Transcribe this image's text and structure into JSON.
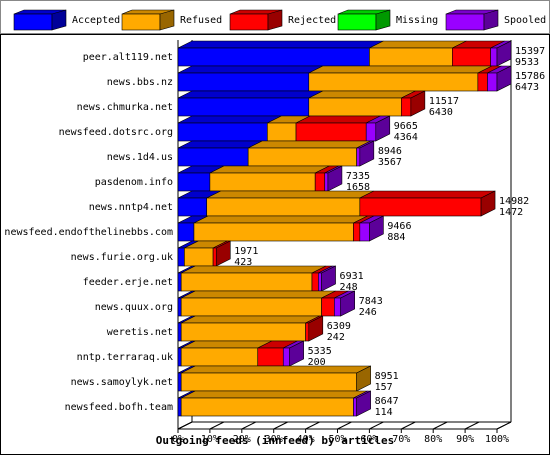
{
  "chart_data": {
    "type": "bar3d_stacked_horizontal",
    "x_label": "Outgoing feeds (innfeed) by articles",
    "categories": [
      "peer.alt119.net",
      "news.bbs.nz",
      "news.chmurka.net",
      "newsfeed.dotsrc.org",
      "news.1d4.us",
      "pasdenom.info",
      "news.nntp4.net",
      "newsfeed.endofthelinebbs.com",
      "news.furie.org.uk",
      "feeder.erje.net",
      "news.quux.org",
      "weretis.net",
      "nntp.terraraq.uk",
      "news.samoylyk.net",
      "newsfeed.bofh.team"
    ],
    "series": [
      {
        "name": "Accepted",
        "color": "#0000ff",
        "values": [
          60,
          41,
          41,
          28,
          22,
          10,
          9,
          5,
          2,
          1,
          1,
          1,
          1,
          1,
          1
        ]
      },
      {
        "name": "Refused",
        "color": "#ffaa00",
        "values": [
          26,
          53,
          29,
          9,
          34,
          33,
          48,
          50,
          9,
          41,
          44,
          39,
          24,
          55,
          54
        ]
      },
      {
        "name": "Rejected",
        "color": "#ff0000",
        "values": [
          12,
          3,
          3,
          22,
          0,
          3,
          38,
          2,
          1,
          2,
          4,
          1,
          8,
          0,
          0
        ]
      },
      {
        "name": "Missing",
        "color": "#00ff00",
        "values": [
          0,
          0,
          0,
          0,
          0,
          0,
          0,
          0,
          0,
          0,
          0,
          0,
          0,
          0,
          0
        ]
      },
      {
        "name": "Spooled",
        "color": "#9900ff",
        "values": [
          2,
          3,
          0,
          3,
          1,
          1,
          0,
          3,
          0,
          1,
          2,
          0,
          2,
          0,
          1
        ]
      }
    ],
    "row_labels": [
      [
        15397,
        9533
      ],
      [
        15786,
        6473
      ],
      [
        11517,
        6430
      ],
      [
        9665,
        4364
      ],
      [
        8946,
        3567
      ],
      [
        7335,
        1658
      ],
      [
        14982,
        1472
      ],
      [
        9466,
        884
      ],
      [
        1971,
        423
      ],
      [
        6931,
        248
      ],
      [
        7843,
        246
      ],
      [
        6309,
        242
      ],
      [
        5335,
        200
      ],
      [
        8951,
        157
      ],
      [
        8647,
        114
      ]
    ],
    "xlim": [
      0,
      100
    ],
    "xticks": [
      {
        "value": 0,
        "label": "0%"
      },
      {
        "value": 10,
        "label": "10%"
      },
      {
        "value": 20,
        "label": "20%"
      },
      {
        "value": 30,
        "label": "30%"
      },
      {
        "value": 40,
        "label": "40%"
      },
      {
        "value": 50,
        "label": "50%"
      },
      {
        "value": 60,
        "label": "60%"
      },
      {
        "value": 70,
        "label": "70%"
      },
      {
        "value": 80,
        "label": "80%"
      },
      {
        "value": 90,
        "label": "90%"
      },
      {
        "value": 100,
        "label": "100%"
      }
    ]
  }
}
